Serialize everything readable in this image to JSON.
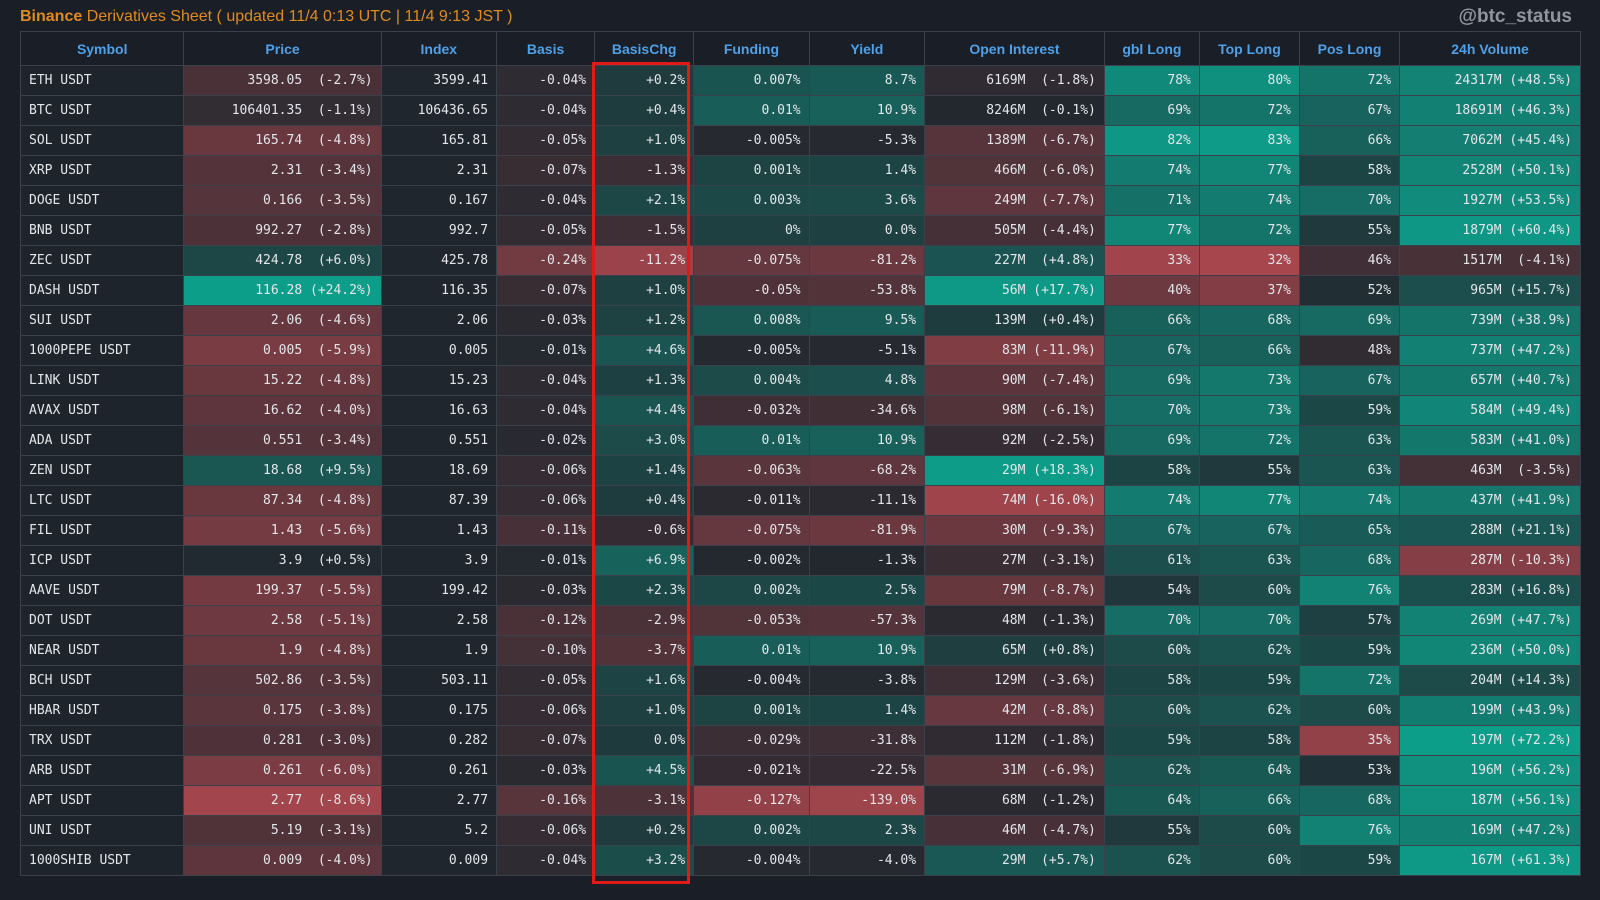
{
  "header": {
    "brand": "Binance",
    "title": "Derivatives Sheet",
    "updated": "( updated  11/4 0:13 UTC  |  11/4 9:13 JST )",
    "handle": "@btc_status"
  },
  "columns": [
    "Symbol",
    "Price",
    "Index",
    "Basis",
    "BasisChg",
    "Funding",
    "Yield",
    "Open Interest",
    "gbl Long",
    "Top Long",
    "Pos Long",
    "24h Volume"
  ],
  "rows": [
    [
      "ETH USDT",
      "3598.05  (-2.7%)",
      "3599.41",
      "-0.04%",
      "+0.2%",
      "0.007%",
      "8.7%",
      "6169M  (-1.8%)",
      "78%",
      "80%",
      "72%",
      "24317M (+48.5%)"
    ],
    [
      "BTC USDT",
      "106401.35  (-1.1%)",
      "106436.65",
      "-0.04%",
      "+0.4%",
      "0.01%",
      "10.9%",
      "8246M  (-0.1%)",
      "69%",
      "72%",
      "67%",
      "18691M (+46.3%)"
    ],
    [
      "SOL USDT",
      "165.74  (-4.8%)",
      "165.81",
      "-0.05%",
      "+1.0%",
      "-0.005%",
      "-5.3%",
      "1389M  (-6.7%)",
      "82%",
      "83%",
      "66%",
      "7062M (+45.4%)"
    ],
    [
      "XRP USDT",
      "2.31  (-3.4%)",
      "2.31",
      "-0.07%",
      "-1.3%",
      "0.001%",
      "1.4%",
      "466M  (-6.0%)",
      "74%",
      "77%",
      "58%",
      "2528M (+50.1%)"
    ],
    [
      "DOGE USDT",
      "0.166  (-3.5%)",
      "0.167",
      "-0.04%",
      "+2.1%",
      "0.003%",
      "3.6%",
      "249M  (-7.7%)",
      "71%",
      "74%",
      "70%",
      "1927M (+53.5%)"
    ],
    [
      "BNB USDT",
      "992.27  (-2.8%)",
      "992.7",
      "-0.05%",
      "-1.5%",
      "0%",
      "0.0%",
      "505M  (-4.4%)",
      "77%",
      "72%",
      "55%",
      "1879M (+60.4%)"
    ],
    [
      "ZEC USDT",
      "424.78  (+6.0%)",
      "425.78",
      "-0.24%",
      "-11.2%",
      "-0.075%",
      "-81.2%",
      "227M  (+4.8%)",
      "33%",
      "32%",
      "46%",
      "1517M  (-4.1%)"
    ],
    [
      "DASH USDT",
      "116.28 (+24.2%)",
      "116.35",
      "-0.07%",
      "+1.0%",
      "-0.05%",
      "-53.8%",
      "56M (+17.7%)",
      "40%",
      "37%",
      "52%",
      "965M (+15.7%)"
    ],
    [
      "SUI USDT",
      "2.06  (-4.6%)",
      "2.06",
      "-0.03%",
      "+1.2%",
      "0.008%",
      "9.5%",
      "139M  (+0.4%)",
      "66%",
      "68%",
      "69%",
      "739M (+38.9%)"
    ],
    [
      "1000PEPE USDT",
      "0.005  (-5.9%)",
      "0.005",
      "-0.01%",
      "+4.6%",
      "-0.005%",
      "-5.1%",
      "83M (-11.9%)",
      "67%",
      "66%",
      "48%",
      "737M (+47.2%)"
    ],
    [
      "LINK USDT",
      "15.22  (-4.8%)",
      "15.23",
      "-0.04%",
      "+1.3%",
      "0.004%",
      "4.8%",
      "90M  (-7.4%)",
      "69%",
      "73%",
      "67%",
      "657M (+40.7%)"
    ],
    [
      "AVAX USDT",
      "16.62  (-4.0%)",
      "16.63",
      "-0.04%",
      "+4.4%",
      "-0.032%",
      "-34.6%",
      "98M  (-6.1%)",
      "70%",
      "73%",
      "59%",
      "584M (+49.4%)"
    ],
    [
      "ADA USDT",
      "0.551  (-3.4%)",
      "0.551",
      "-0.02%",
      "+3.0%",
      "0.01%",
      "10.9%",
      "92M  (-2.5%)",
      "69%",
      "72%",
      "63%",
      "583M (+41.0%)"
    ],
    [
      "ZEN USDT",
      "18.68  (+9.5%)",
      "18.69",
      "-0.06%",
      "+1.4%",
      "-0.063%",
      "-68.2%",
      "29M (+18.3%)",
      "58%",
      "55%",
      "63%",
      "463M  (-3.5%)"
    ],
    [
      "LTC USDT",
      "87.34  (-4.8%)",
      "87.39",
      "-0.06%",
      "+0.4%",
      "-0.011%",
      "-11.1%",
      "74M (-16.0%)",
      "74%",
      "77%",
      "74%",
      "437M (+41.9%)"
    ],
    [
      "FIL USDT",
      "1.43  (-5.6%)",
      "1.43",
      "-0.11%",
      "-0.6%",
      "-0.075%",
      "-81.9%",
      "30M  (-9.3%)",
      "67%",
      "67%",
      "65%",
      "288M (+21.1%)"
    ],
    [
      "ICP USDT",
      "3.9  (+0.5%)",
      "3.9",
      "-0.01%",
      "+6.9%",
      "-0.002%",
      "-1.3%",
      "27M  (-3.1%)",
      "61%",
      "63%",
      "68%",
      "287M (-10.3%)"
    ],
    [
      "AAVE USDT",
      "199.37  (-5.5%)",
      "199.42",
      "-0.03%",
      "+2.3%",
      "0.002%",
      "2.5%",
      "79M  (-8.7%)",
      "54%",
      "60%",
      "76%",
      "283M (+16.8%)"
    ],
    [
      "DOT USDT",
      "2.58  (-5.1%)",
      "2.58",
      "-0.12%",
      "-2.9%",
      "-0.053%",
      "-57.3%",
      "48M  (-1.3%)",
      "70%",
      "70%",
      "57%",
      "269M (+47.7%)"
    ],
    [
      "NEAR USDT",
      "1.9  (-4.8%)",
      "1.9",
      "-0.10%",
      "-3.7%",
      "0.01%",
      "10.9%",
      "65M  (+0.8%)",
      "60%",
      "62%",
      "59%",
      "236M (+50.0%)"
    ],
    [
      "BCH USDT",
      "502.86  (-3.5%)",
      "503.11",
      "-0.05%",
      "+1.6%",
      "-0.004%",
      "-3.8%",
      "129M  (-3.6%)",
      "58%",
      "59%",
      "72%",
      "204M (+14.3%)"
    ],
    [
      "HBAR USDT",
      "0.175  (-3.8%)",
      "0.175",
      "-0.06%",
      "+1.0%",
      "0.001%",
      "1.4%",
      "42M  (-8.8%)",
      "60%",
      "62%",
      "60%",
      "199M (+43.9%)"
    ],
    [
      "TRX USDT",
      "0.281  (-3.0%)",
      "0.282",
      "-0.07%",
      "0.0%",
      "-0.029%",
      "-31.8%",
      "112M  (-1.8%)",
      "59%",
      "58%",
      "35%",
      "197M (+72.2%)"
    ],
    [
      "ARB USDT",
      "0.261  (-6.0%)",
      "0.261",
      "-0.03%",
      "+4.5%",
      "-0.021%",
      "-22.5%",
      "31M  (-6.9%)",
      "62%",
      "64%",
      "53%",
      "196M (+56.2%)"
    ],
    [
      "APT USDT",
      "2.77  (-8.6%)",
      "2.77",
      "-0.16%",
      "-3.1%",
      "-0.127%",
      "-139.0%",
      "68M  (-1.2%)",
      "64%",
      "66%",
      "68%",
      "187M (+56.1%)"
    ],
    [
      "UNI USDT",
      "5.19  (-3.1%)",
      "5.2",
      "-0.06%",
      "+0.2%",
      "0.002%",
      "2.3%",
      "46M  (-4.7%)",
      "55%",
      "60%",
      "76%",
      "169M (+47.2%)"
    ],
    [
      "1000SHIB USDT",
      "0.009  (-4.0%)",
      "0.009",
      "-0.04%",
      "+3.2%",
      "-0.004%",
      "-4.0%",
      "29M  (+5.7%)",
      "62%",
      "60%",
      "59%",
      "167M (+61.3%)"
    ]
  ],
  "colors": {
    "header_text": "#4ea0e8",
    "brand": "#e08a1e",
    "highlight_border": "#e01919",
    "positive": "#0d9e8a",
    "negative": "#a8464d",
    "neutral": "#22282f"
  }
}
